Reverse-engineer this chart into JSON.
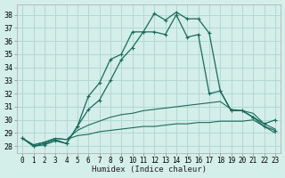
{
  "xlabel": "Humidex (Indice chaleur)",
  "background_color": "#d4eeea",
  "grid_color": "#b4d8d4",
  "line_color": "#1a6b5a",
  "xlim": [
    -0.5,
    23.5
  ],
  "ylim": [
    27.5,
    38.8
  ],
  "xticks": [
    0,
    1,
    2,
    3,
    4,
    5,
    6,
    7,
    8,
    9,
    10,
    11,
    12,
    13,
    14,
    15,
    16,
    17,
    18,
    19,
    20,
    21,
    22,
    23
  ],
  "yticks": [
    28,
    29,
    30,
    31,
    32,
    33,
    34,
    35,
    36,
    37,
    38
  ],
  "hours": [
    0,
    1,
    2,
    3,
    4,
    5,
    6,
    7,
    8,
    9,
    10,
    11,
    12,
    13,
    14,
    15,
    16,
    17,
    18,
    19,
    20,
    21,
    22,
    23
  ],
  "line1": [
    28.6,
    28.0,
    28.1,
    28.4,
    28.2,
    29.5,
    31.8,
    32.8,
    34.6,
    35.0,
    36.7,
    36.7,
    38.1,
    37.6,
    38.2,
    37.7,
    37.7,
    36.6,
    32.2,
    30.7,
    30.7,
    30.2,
    29.7,
    30.0
  ],
  "line2": [
    28.6,
    28.0,
    28.2,
    28.5,
    28.2,
    29.5,
    30.8,
    31.5,
    33.0,
    34.6,
    35.5,
    36.7,
    36.7,
    36.5,
    38.0,
    36.3,
    36.5,
    32.0,
    32.2,
    30.7,
    30.7,
    30.2,
    29.5,
    29.2
  ],
  "line3": [
    28.6,
    28.1,
    28.3,
    28.6,
    28.5,
    29.2,
    29.6,
    29.9,
    30.2,
    30.4,
    30.5,
    30.7,
    30.8,
    30.9,
    31.0,
    31.1,
    31.2,
    31.3,
    31.4,
    30.8,
    30.7,
    30.5,
    29.7,
    29.3
  ],
  "line4": [
    28.6,
    28.1,
    28.3,
    28.6,
    28.5,
    28.8,
    28.9,
    29.1,
    29.2,
    29.3,
    29.4,
    29.5,
    29.5,
    29.6,
    29.7,
    29.7,
    29.8,
    29.8,
    29.9,
    29.9,
    29.9,
    30.0,
    29.5,
    29.0
  ]
}
